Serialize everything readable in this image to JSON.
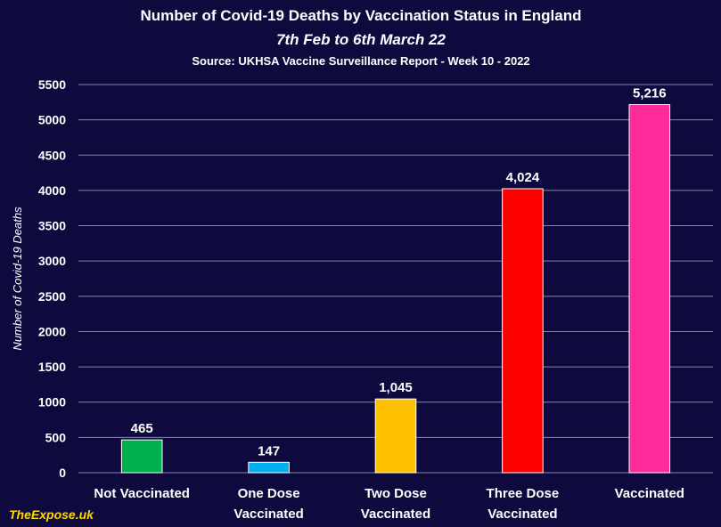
{
  "chart_data": {
    "type": "bar",
    "title": "Number of Covid-19 Deaths by Vaccination Status in England",
    "subtitle": "7th Feb to 6th March 22",
    "source": "Source: UKHSA Vaccine Surveillance Report - Week 10 - 2022",
    "ylabel": "Number of Covid-19 Deaths",
    "xlabel": "",
    "ylim": [
      0,
      5500
    ],
    "yticks": [
      0,
      500,
      1000,
      1500,
      2000,
      2500,
      3000,
      3500,
      4000,
      4500,
      5000,
      5500
    ],
    "grid": true,
    "categories": [
      [
        "Not Vaccinated"
      ],
      [
        "One Dose",
        "Vaccinated"
      ],
      [
        "Two Dose",
        "Vaccinated"
      ],
      [
        "Three Dose",
        "Vaccinated"
      ],
      [
        "Vaccinated"
      ]
    ],
    "values": [
      465,
      147,
      1045,
      4024,
      5216
    ],
    "value_labels": [
      "465",
      "147",
      "1,045",
      "4,024",
      "5,216"
    ],
    "colors": [
      "#00b050",
      "#00b0f0",
      "#ffc000",
      "#ff0000",
      "#ff2a9c"
    ]
  },
  "brand": "TheExpose.uk"
}
